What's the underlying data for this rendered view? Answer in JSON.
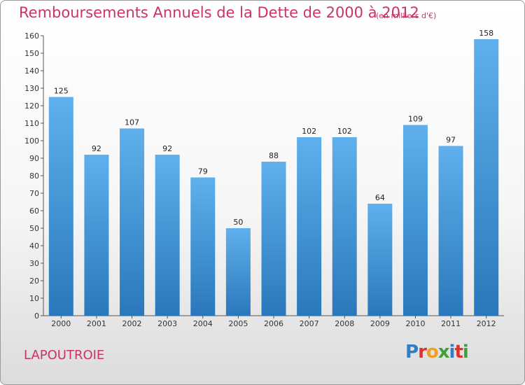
{
  "title": "Remboursements Annuels de la Dette de 2000 à 2012",
  "subtitle": "(en milliers d'€)",
  "city": "LAPOUTROIE",
  "logo": {
    "p": "P",
    "r": "r",
    "o": "o",
    "x": "x",
    "i1": "i",
    "t": "t",
    "i2": "i"
  },
  "chart_data": {
    "type": "bar",
    "title": "Remboursements Annuels de la Dette de 2000 à 2012",
    "subtitle": "(en milliers d'€)",
    "categories": [
      "2000",
      "2001",
      "2002",
      "2003",
      "2004",
      "2005",
      "2006",
      "2007",
      "2008",
      "2009",
      "2010",
      "2011",
      "2012"
    ],
    "values": [
      125,
      92,
      107,
      92,
      79,
      50,
      88,
      102,
      102,
      64,
      109,
      97,
      158
    ],
    "ylim": [
      0,
      160
    ],
    "yticks": [
      0,
      10,
      20,
      30,
      40,
      50,
      60,
      70,
      80,
      90,
      100,
      110,
      120,
      130,
      140,
      150,
      160
    ],
    "grid": false,
    "bar_color": "#5aaae6",
    "bar_color_dark": "#2f7fc0"
  }
}
